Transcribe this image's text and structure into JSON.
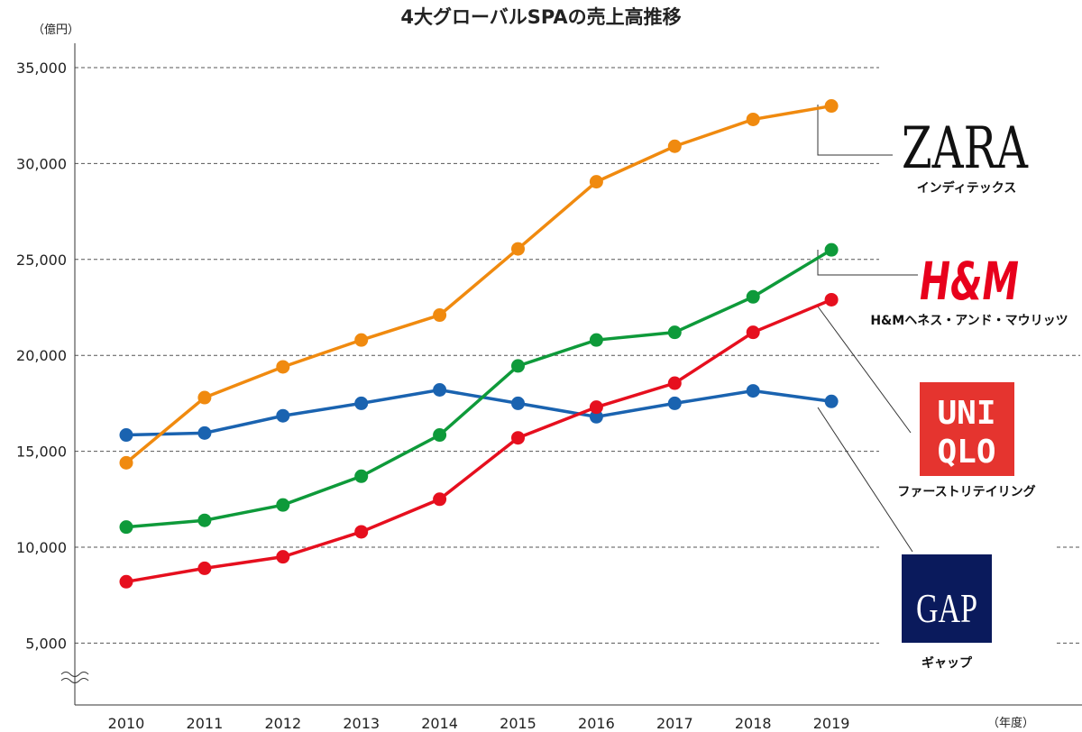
{
  "chart_data": {
    "type": "line",
    "title": "4大グローバルSPAの売上高推移",
    "ylabel": "（億円）",
    "xlabel": "（年度）",
    "categories": [
      "2010",
      "2011",
      "2012",
      "2013",
      "2014",
      "2015",
      "2016",
      "2017",
      "2018",
      "2019"
    ],
    "y_ticks": [
      "5,000",
      "10,000",
      "15,000",
      "20,000",
      "25,000",
      "30,000",
      "35,000"
    ],
    "ylim": [
      0,
      35000
    ],
    "y_axis_break": true,
    "grid": "horizontal dashed",
    "series": [
      {
        "name": "インディテックス",
        "logo": "ZARA",
        "color": "#f08a0f",
        "values": [
          14400,
          17800,
          19400,
          20800,
          22100,
          25550,
          29050,
          30900,
          32300,
          33000
        ]
      },
      {
        "name": "H&Mヘネス・アンド・マウリッツ",
        "logo": "H&M",
        "color": "#0e9a3a",
        "values": [
          11050,
          11400,
          12200,
          13700,
          15850,
          19450,
          20800,
          21200,
          23050,
          25500
        ]
      },
      {
        "name": "ファーストリテイリング",
        "logo": "UNIQLO",
        "logo_lines": [
          "UNI",
          "QLO"
        ],
        "color": "#e60f1e",
        "values": [
          8200,
          8900,
          9500,
          10800,
          12500,
          15700,
          17300,
          18550,
          21200,
          22900
        ]
      },
      {
        "name": "ギャップ",
        "logo": "GAP",
        "color": "#1a63b0",
        "values": [
          15850,
          15950,
          16850,
          17500,
          18200,
          17500,
          16800,
          17500,
          18150,
          17600
        ]
      }
    ],
    "logo_colors": {
      "zara": "#111111",
      "hm": "#e8001c",
      "uniqlo": "#e5342f",
      "gap": "#0a1a5c"
    }
  }
}
